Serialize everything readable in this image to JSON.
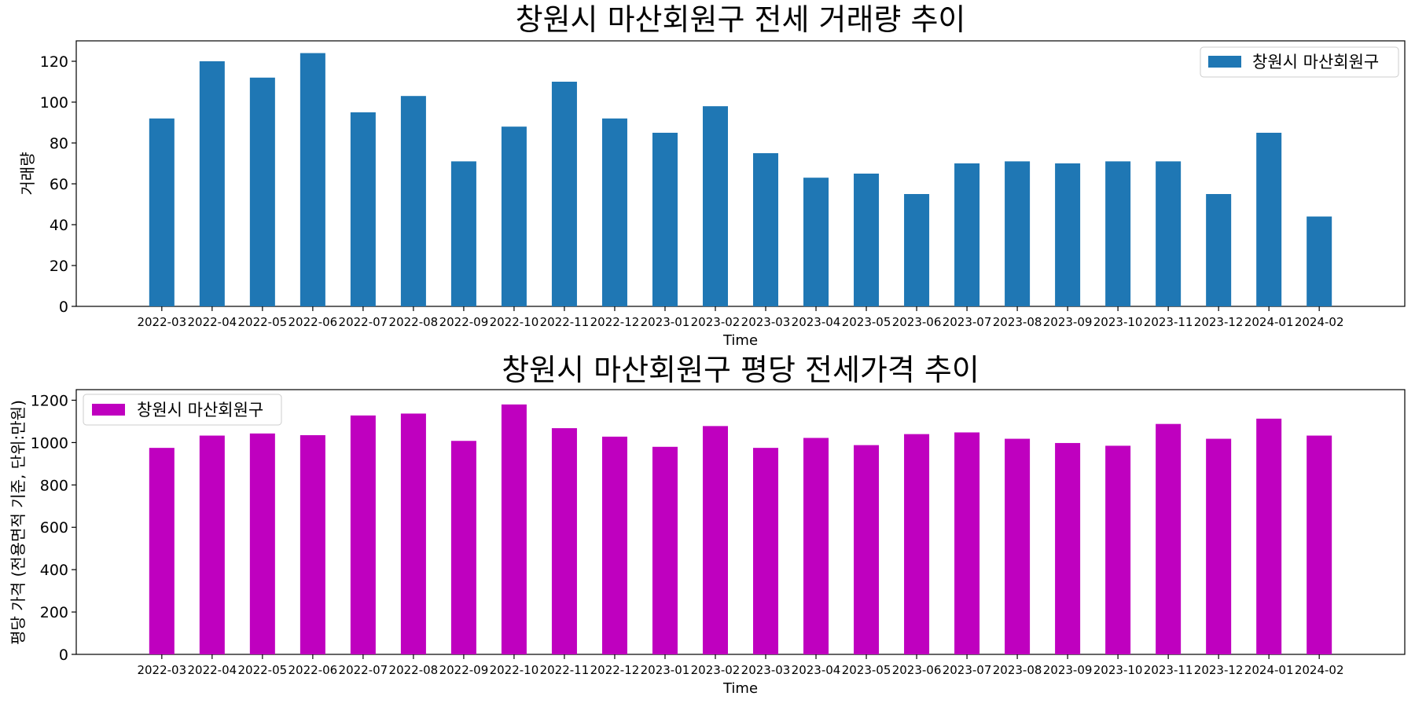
{
  "chart_data": [
    {
      "type": "bar",
      "title": "창원시 마산회원구 전세 거래량 추이",
      "xlabel": "Time",
      "ylabel": "거래량",
      "categories": [
        "2022-03",
        "2022-04",
        "2022-05",
        "2022-06",
        "2022-07",
        "2022-08",
        "2022-09",
        "2022-10",
        "2022-11",
        "2022-12",
        "2023-01",
        "2023-02",
        "2023-03",
        "2023-04",
        "2023-05",
        "2023-06",
        "2023-07",
        "2023-08",
        "2023-09",
        "2023-10",
        "2023-11",
        "2023-12",
        "2024-01",
        "2024-02"
      ],
      "series": [
        {
          "name": "창원시 마산회원구",
          "color": "#1f77b4",
          "values": [
            92,
            120,
            112,
            124,
            95,
            103,
            71,
            88,
            110,
            92,
            85,
            98,
            75,
            63,
            65,
            55,
            70,
            71,
            70,
            71,
            71,
            55,
            85,
            44
          ]
        }
      ],
      "ylim": [
        0,
        130
      ],
      "yticks": [
        0,
        20,
        40,
        60,
        80,
        100,
        120
      ],
      "legend": "top-right",
      "grid": false
    },
    {
      "type": "bar",
      "title": "창원시 마산회원구 평당 전세가격 추이",
      "xlabel": "Time",
      "ylabel": "평당 가격 (전용면적 기준, 단위:만원)",
      "categories": [
        "2022-03",
        "2022-04",
        "2022-05",
        "2022-06",
        "2022-07",
        "2022-08",
        "2022-09",
        "2022-10",
        "2022-11",
        "2022-12",
        "2023-01",
        "2023-02",
        "2023-03",
        "2023-04",
        "2023-05",
        "2023-06",
        "2023-07",
        "2023-08",
        "2023-09",
        "2023-10",
        "2023-11",
        "2023-12",
        "2024-01",
        "2024-02"
      ],
      "series": [
        {
          "name": "창원시 마산회원구",
          "color": "#bf00bf",
          "values": [
            975,
            1033,
            1043,
            1035,
            1128,
            1137,
            1008,
            1180,
            1068,
            1028,
            980,
            1078,
            975,
            1022,
            988,
            1040,
            1048,
            1018,
            998,
            985,
            1088,
            1018,
            1113,
            1033
          ]
        }
      ],
      "ylim": [
        0,
        1250
      ],
      "yticks": [
        0,
        200,
        400,
        600,
        800,
        1000,
        1200
      ],
      "legend": "top-left",
      "grid": false
    }
  ]
}
